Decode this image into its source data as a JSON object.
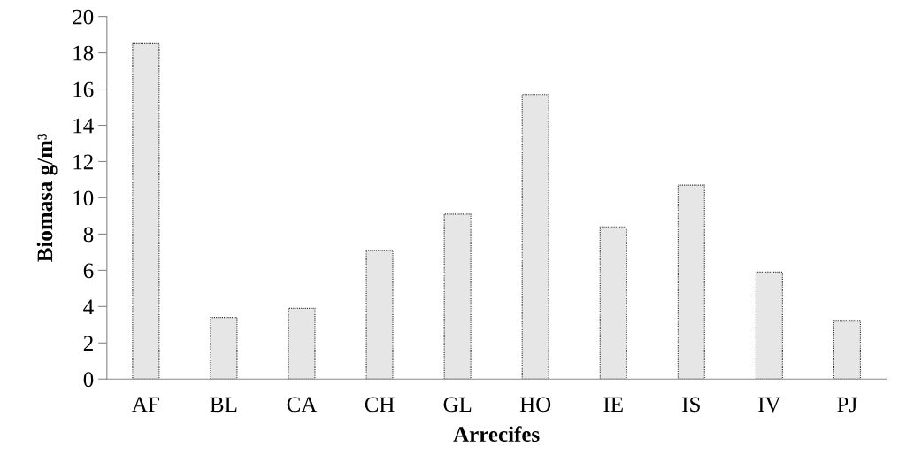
{
  "chart_data": {
    "type": "bar",
    "xlabel": "Arrecifes",
    "ylabel": "Biomasa g/m³",
    "categories": [
      "AF",
      "BL",
      "CA",
      "CH",
      "GL",
      "HO",
      "IE",
      "IS",
      "IV",
      "PJ"
    ],
    "values": [
      18.5,
      3.4,
      3.9,
      7.1,
      9.1,
      15.7,
      8.4,
      10.7,
      5.9,
      3.2
    ],
    "color": "#e6e6e6",
    "ylim": [
      0,
      20
    ],
    "yticks": [
      0,
      2,
      4,
      6,
      8,
      10,
      12,
      14,
      16,
      18,
      20
    ],
    "grid": false,
    "legend": false
  }
}
